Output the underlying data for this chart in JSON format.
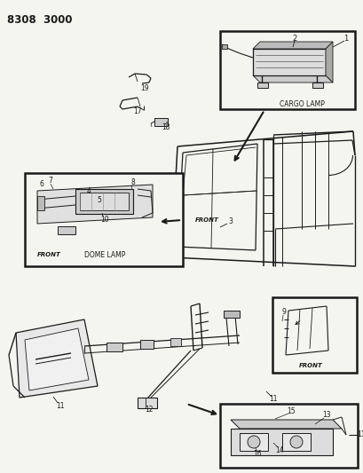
{
  "title_code": "8308  3000",
  "bg_color": "#f5f5f0",
  "line_color": "#1a1a1a",
  "box_color": "#1a1a1a",
  "figsize": [
    4.1,
    5.33
  ],
  "dpi": 100,
  "labels": {
    "cargo_lamp": "CARGO LAMP",
    "dome_lamp": "DOME LAMP",
    "front": "FRONT"
  }
}
